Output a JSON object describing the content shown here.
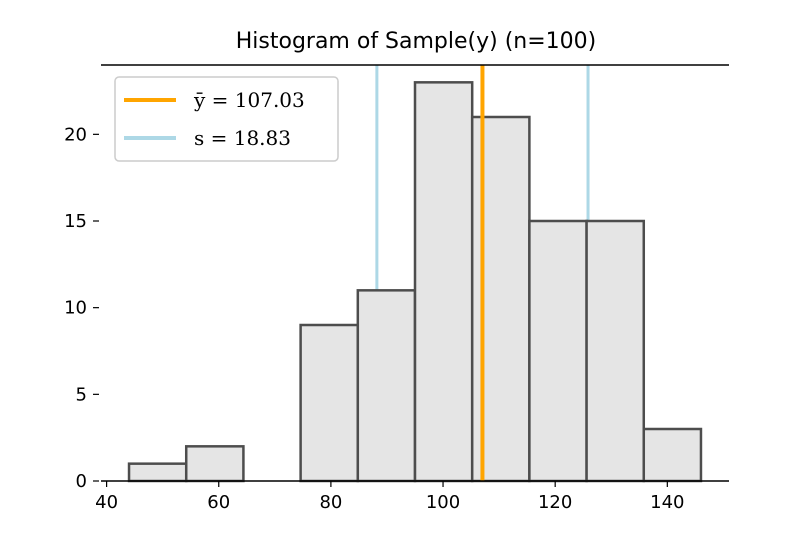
{
  "chart_data": {
    "type": "bar",
    "title": "Histogram of Sample(y) (n=100)",
    "bins": [
      {
        "start": 44.0,
        "end": 54.2,
        "count": 1
      },
      {
        "start": 54.2,
        "end": 64.4,
        "count": 2
      },
      {
        "start": 64.4,
        "end": 74.6,
        "count": 0
      },
      {
        "start": 74.6,
        "end": 84.8,
        "count": 9
      },
      {
        "start": 84.8,
        "end": 95.0,
        "count": 11
      },
      {
        "start": 95.0,
        "end": 105.2,
        "count": 23
      },
      {
        "start": 105.2,
        "end": 115.4,
        "count": 21
      },
      {
        "start": 115.4,
        "end": 125.6,
        "count": 15
      },
      {
        "start": 125.6,
        "end": 135.8,
        "count": 15
      },
      {
        "start": 135.8,
        "end": 146.0,
        "count": 3
      }
    ],
    "xlim": [
      39,
      151
    ],
    "ylim": [
      0,
      24
    ],
    "xticks": [
      40,
      60,
      80,
      100,
      120,
      140
    ],
    "yticks": [
      0,
      5,
      10,
      15,
      20
    ],
    "lines": [
      {
        "kind": "mean",
        "label": "ȳ = 107.03",
        "x": 107.03,
        "color": "#FFA500"
      },
      {
        "kind": "sd",
        "label": "s = 18.83",
        "x": [
          88.2,
          125.86
        ],
        "color": "#ADD8E6"
      }
    ],
    "bar_fill": "#E5E5E5",
    "bar_edge": "#4D4D4D",
    "legend_position": "upper-left",
    "grid": false
  }
}
